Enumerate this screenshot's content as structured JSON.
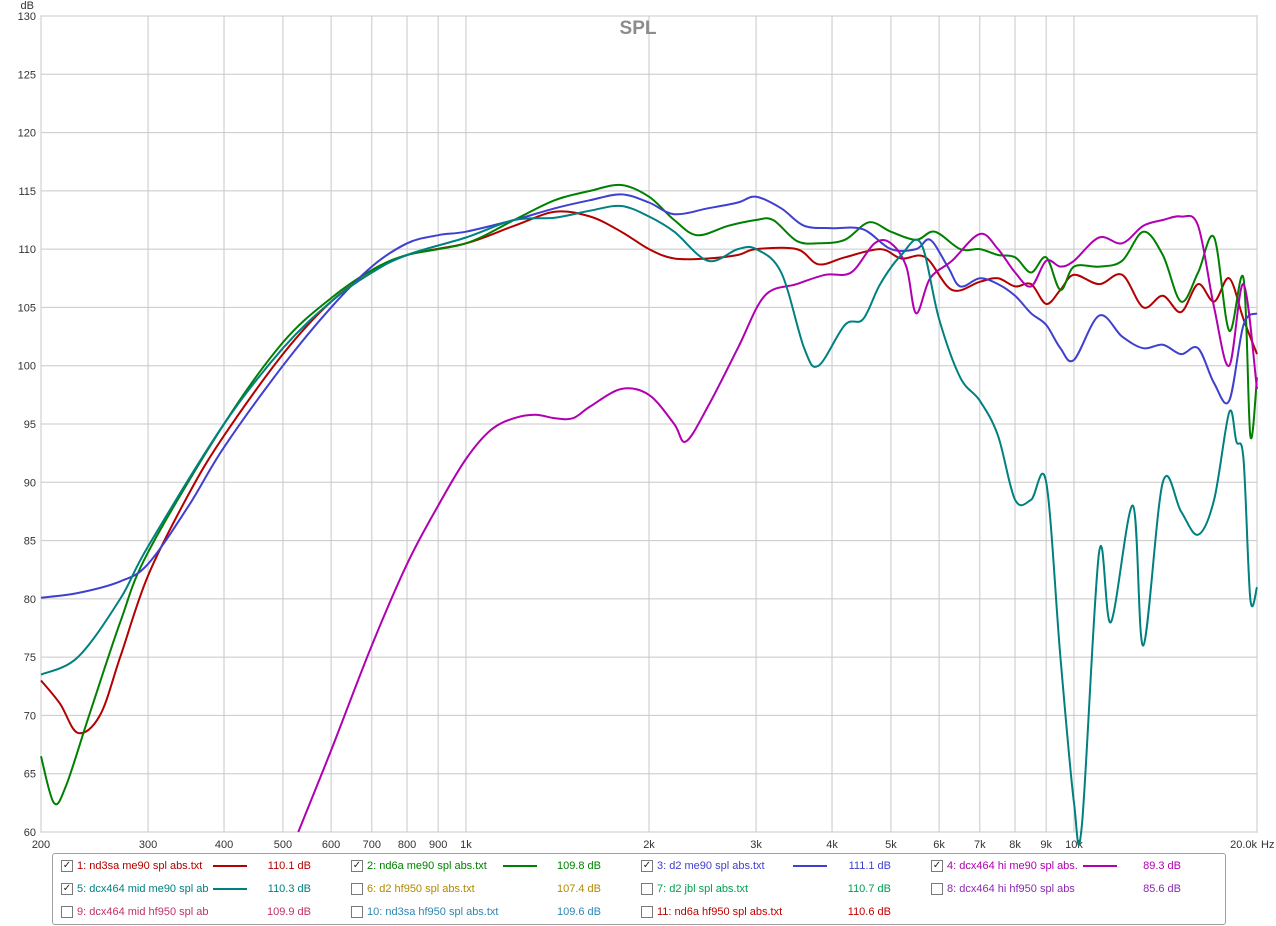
{
  "chart_data": {
    "type": "line",
    "title": "SPL",
    "ylabel": "dB",
    "xlabel": "Hz",
    "x_scale": "log",
    "xlim": [
      200,
      20000
    ],
    "ylim": [
      60,
      130
    ],
    "grid": true,
    "y_ticks": [
      60,
      65,
      70,
      75,
      80,
      85,
      90,
      95,
      100,
      105,
      110,
      115,
      120,
      125,
      130
    ],
    "x_ticks": [
      {
        "value": 200,
        "label": "200"
      },
      {
        "value": 300,
        "label": "300"
      },
      {
        "value": 400,
        "label": "400"
      },
      {
        "value": 500,
        "label": "500"
      },
      {
        "value": 600,
        "label": "600"
      },
      {
        "value": 700,
        "label": "700"
      },
      {
        "value": 800,
        "label": "800"
      },
      {
        "value": 900,
        "label": "900"
      },
      {
        "value": 1000,
        "label": "1k"
      },
      {
        "value": 2000,
        "label": "2k"
      },
      {
        "value": 3000,
        "label": "3k"
      },
      {
        "value": 4000,
        "label": "4k"
      },
      {
        "value": 5000,
        "label": "5k"
      },
      {
        "value": 6000,
        "label": "6k"
      },
      {
        "value": 7000,
        "label": "7k"
      },
      {
        "value": 8000,
        "label": "8k"
      },
      {
        "value": 9000,
        "label": "9k"
      },
      {
        "value": 10000,
        "label": "10k"
      },
      {
        "value": 20000,
        "label": "20.0k"
      }
    ],
    "series": [
      {
        "id": "s1",
        "color": "#b30000",
        "points": [
          [
            200,
            73
          ],
          [
            215,
            71
          ],
          [
            230,
            68.5
          ],
          [
            250,
            70
          ],
          [
            270,
            75
          ],
          [
            300,
            82
          ],
          [
            350,
            89
          ],
          [
            400,
            94
          ],
          [
            500,
            101
          ],
          [
            600,
            105.5
          ],
          [
            700,
            108
          ],
          [
            800,
            109.5
          ],
          [
            1000,
            110.5
          ],
          [
            1200,
            112
          ],
          [
            1400,
            113.2
          ],
          [
            1600,
            112.8
          ],
          [
            1800,
            111.5
          ],
          [
            2000,
            110
          ],
          [
            2200,
            109.2
          ],
          [
            2500,
            109.2
          ],
          [
            2800,
            109.5
          ],
          [
            3000,
            110
          ],
          [
            3500,
            110
          ],
          [
            3800,
            108.7
          ],
          [
            4200,
            109.3
          ],
          [
            4800,
            110
          ],
          [
            5200,
            109.2
          ],
          [
            5700,
            109.3
          ],
          [
            6300,
            106.5
          ],
          [
            7000,
            107.2
          ],
          [
            7500,
            107.5
          ],
          [
            8000,
            106.8
          ],
          [
            8500,
            107
          ],
          [
            9000,
            105.3
          ],
          [
            9500,
            106.5
          ],
          [
            10000,
            107.8
          ],
          [
            11000,
            107
          ],
          [
            12000,
            107.8
          ],
          [
            13000,
            105
          ],
          [
            14000,
            106
          ],
          [
            15000,
            104.6
          ],
          [
            16000,
            107
          ],
          [
            17000,
            105.5
          ],
          [
            18000,
            107.5
          ],
          [
            19000,
            104
          ],
          [
            20000,
            101
          ]
        ]
      },
      {
        "id": "s2",
        "color": "#008000",
        "points": [
          [
            200,
            66.5
          ],
          [
            210,
            62.5
          ],
          [
            220,
            64
          ],
          [
            240,
            70
          ],
          [
            270,
            78
          ],
          [
            300,
            84
          ],
          [
            400,
            95
          ],
          [
            500,
            102
          ],
          [
            600,
            105.8
          ],
          [
            700,
            108.2
          ],
          [
            800,
            109.5
          ],
          [
            1000,
            110.5
          ],
          [
            1200,
            112.5
          ],
          [
            1400,
            114.2
          ],
          [
            1600,
            115
          ],
          [
            1800,
            115.5
          ],
          [
            2000,
            114.5
          ],
          [
            2200,
            112.5
          ],
          [
            2400,
            111.2
          ],
          [
            2700,
            112
          ],
          [
            3000,
            112.5
          ],
          [
            3200,
            112.5
          ],
          [
            3500,
            110.7
          ],
          [
            3800,
            110.5
          ],
          [
            4200,
            110.8
          ],
          [
            4600,
            112.3
          ],
          [
            5000,
            111.5
          ],
          [
            5500,
            110.8
          ],
          [
            5900,
            111.5
          ],
          [
            6500,
            110
          ],
          [
            7000,
            110
          ],
          [
            7500,
            109.5
          ],
          [
            8000,
            109.3
          ],
          [
            8500,
            108
          ],
          [
            9000,
            109.3
          ],
          [
            9500,
            106.5
          ],
          [
            10000,
            108.5
          ],
          [
            11000,
            108.5
          ],
          [
            12000,
            109
          ],
          [
            13000,
            111.5
          ],
          [
            14000,
            109.5
          ],
          [
            15000,
            105.5
          ],
          [
            16000,
            108
          ],
          [
            17000,
            111
          ],
          [
            18000,
            103
          ],
          [
            19000,
            107.5
          ],
          [
            19500,
            94
          ],
          [
            20000,
            99
          ]
        ]
      },
      {
        "id": "s3",
        "color": "#3f3fd0",
        "points": [
          [
            200,
            80.1
          ],
          [
            230,
            80.5
          ],
          [
            270,
            81.5
          ],
          [
            300,
            83
          ],
          [
            350,
            88
          ],
          [
            400,
            93
          ],
          [
            500,
            100
          ],
          [
            600,
            105
          ],
          [
            700,
            108.5
          ],
          [
            800,
            110.5
          ],
          [
            900,
            111.2
          ],
          [
            1000,
            111.5
          ],
          [
            1200,
            112.5
          ],
          [
            1400,
            113.5
          ],
          [
            1600,
            114.2
          ],
          [
            1800,
            114.7
          ],
          [
            2000,
            114
          ],
          [
            2200,
            113
          ],
          [
            2500,
            113.5
          ],
          [
            2800,
            114
          ],
          [
            3000,
            114.5
          ],
          [
            3300,
            113.5
          ],
          [
            3600,
            112
          ],
          [
            4000,
            111.8
          ],
          [
            4500,
            111.7
          ],
          [
            5000,
            110
          ],
          [
            5500,
            110
          ],
          [
            5800,
            110.8
          ],
          [
            6200,
            108.5
          ],
          [
            6500,
            106.8
          ],
          [
            7000,
            107.5
          ],
          [
            7500,
            107
          ],
          [
            8000,
            106
          ],
          [
            8500,
            104.5
          ],
          [
            9000,
            103.5
          ],
          [
            9500,
            101.5
          ],
          [
            10000,
            100.5
          ],
          [
            11000,
            104.3
          ],
          [
            12000,
            102.5
          ],
          [
            13000,
            101.5
          ],
          [
            14000,
            101.8
          ],
          [
            15000,
            101
          ],
          [
            16000,
            101.5
          ],
          [
            17000,
            98.5
          ],
          [
            18000,
            97
          ],
          [
            19000,
            103.5
          ],
          [
            20000,
            104.5
          ]
        ]
      },
      {
        "id": "s4",
        "color": "#b000b0",
        "points": [
          [
            530,
            60
          ],
          [
            600,
            67
          ],
          [
            700,
            76
          ],
          [
            800,
            83
          ],
          [
            900,
            88
          ],
          [
            1000,
            92
          ],
          [
            1100,
            94.5
          ],
          [
            1200,
            95.5
          ],
          [
            1300,
            95.8
          ],
          [
            1400,
            95.5
          ],
          [
            1500,
            95.5
          ],
          [
            1600,
            96.5
          ],
          [
            1800,
            98
          ],
          [
            2000,
            97.5
          ],
          [
            2200,
            95
          ],
          [
            2300,
            93.5
          ],
          [
            2500,
            96.5
          ],
          [
            2800,
            101.5
          ],
          [
            3100,
            106
          ],
          [
            3500,
            107
          ],
          [
            3900,
            107.8
          ],
          [
            4300,
            108
          ],
          [
            4700,
            110.5
          ],
          [
            5000,
            110.5
          ],
          [
            5300,
            108.5
          ],
          [
            5500,
            104.5
          ],
          [
            5800,
            107.5
          ],
          [
            6300,
            109
          ],
          [
            7000,
            111.3
          ],
          [
            7500,
            110
          ],
          [
            8000,
            108
          ],
          [
            8500,
            106.8
          ],
          [
            9000,
            109
          ],
          [
            9500,
            108.5
          ],
          [
            10000,
            109
          ],
          [
            11000,
            111
          ],
          [
            12000,
            110.5
          ],
          [
            13000,
            112
          ],
          [
            14000,
            112.5
          ],
          [
            15000,
            112.8
          ],
          [
            16000,
            112
          ],
          [
            17000,
            105
          ],
          [
            18000,
            100
          ],
          [
            19000,
            107
          ],
          [
            20000,
            98
          ]
        ]
      },
      {
        "id": "s5",
        "color": "#008080",
        "points": [
          [
            200,
            73.5
          ],
          [
            230,
            75
          ],
          [
            270,
            80
          ],
          [
            300,
            84.5
          ],
          [
            400,
            95
          ],
          [
            500,
            101.5
          ],
          [
            600,
            105.5
          ],
          [
            700,
            108
          ],
          [
            800,
            109.5
          ],
          [
            1000,
            111
          ],
          [
            1200,
            112.5
          ],
          [
            1400,
            112.7
          ],
          [
            1600,
            113.3
          ],
          [
            1800,
            113.7
          ],
          [
            2000,
            112.8
          ],
          [
            2200,
            111.5
          ],
          [
            2500,
            109
          ],
          [
            2800,
            110
          ],
          [
            3000,
            110
          ],
          [
            3300,
            108
          ],
          [
            3600,
            101.5
          ],
          [
            3800,
            100
          ],
          [
            4200,
            103.5
          ],
          [
            4500,
            104
          ],
          [
            4800,
            107
          ],
          [
            5200,
            109.5
          ],
          [
            5600,
            110.5
          ],
          [
            6000,
            104
          ],
          [
            6500,
            99
          ],
          [
            7000,
            97
          ],
          [
            7500,
            94
          ],
          [
            8000,
            88.5
          ],
          [
            8500,
            88.5
          ],
          [
            9000,
            90
          ],
          [
            9500,
            75
          ],
          [
            10000,
            62.5
          ],
          [
            10300,
            60.5
          ],
          [
            11000,
            84
          ],
          [
            11500,
            78
          ],
          [
            12500,
            88
          ],
          [
            13000,
            76
          ],
          [
            14000,
            90
          ],
          [
            15000,
            87.5
          ],
          [
            16000,
            85.5
          ],
          [
            17000,
            88.5
          ],
          [
            18000,
            96
          ],
          [
            18500,
            93.5
          ],
          [
            19000,
            92
          ],
          [
            19500,
            80
          ],
          [
            20000,
            81
          ]
        ]
      }
    ]
  },
  "legend": [
    {
      "id": "s1",
      "checked": true,
      "label": "1: nd3sa me90 spl abs.txt",
      "value": "110.1 dB",
      "color": "#b30000"
    },
    {
      "id": "s2",
      "checked": true,
      "label": "2: nd6a me90 spl abs.txt",
      "value": "109.8 dB",
      "color": "#008000"
    },
    {
      "id": "s3",
      "checked": true,
      "label": "3: d2 me90 spl abs.txt",
      "value": "111.1 dB",
      "color": "#3f3fd0"
    },
    {
      "id": "s4",
      "checked": true,
      "label": "4: dcx464 hi me90 spl abs.",
      "value": "89.3 dB",
      "color": "#b000b0"
    },
    {
      "id": "s5",
      "checked": true,
      "label": "5: dcx464 mid me90 spl ab",
      "value": "110.3 dB",
      "color": "#008080"
    },
    {
      "id": "s6",
      "checked": false,
      "label": "6: d2 hf950 spl abs.txt",
      "value": "107.4 dB",
      "color": "#b08a00"
    },
    {
      "id": "s7",
      "checked": false,
      "label": "7: d2 jbl spl abs.txt",
      "value": "110.7 dB",
      "color": "#00a050"
    },
    {
      "id": "s8",
      "checked": false,
      "label": "8: dcx464 hi hf950 spl abs",
      "value": "85.6 dB",
      "color": "#8a2ab0"
    },
    {
      "id": "s9",
      "checked": false,
      "label": "9: dcx464 mid hf950 spl ab",
      "value": "109.9 dB",
      "color": "#c0306a"
    },
    {
      "id": "s10",
      "checked": false,
      "label": "10: nd3sa hf950 spl abs.txt",
      "value": "109.6 dB",
      "color": "#2e86b0"
    },
    {
      "id": "s11",
      "checked": false,
      "label": "11: nd6a hf950 spl abs.txt",
      "value": "110.6 dB",
      "color": "#c00000"
    }
  ],
  "checkmark_glyph": "✓"
}
